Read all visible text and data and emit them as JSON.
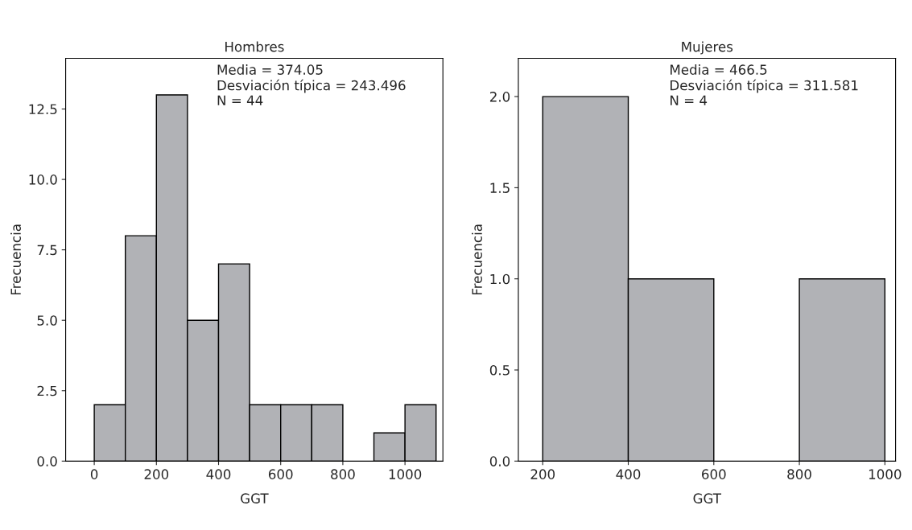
{
  "chart_data": [
    {
      "type": "histogram",
      "title": "Hombres",
      "xlabel": "GGT",
      "ylabel": "Frecuencia",
      "bins": [
        0,
        100,
        200,
        300,
        400,
        500,
        600,
        700,
        800,
        900,
        1000,
        1100
      ],
      "values": [
        2,
        8,
        13,
        5,
        7,
        2,
        2,
        2,
        0,
        1,
        2
      ],
      "color": "#b1b2b6",
      "xlim": [
        -92,
        1122
      ],
      "ylim": [
        0,
        14.3
      ],
      "xticks": [
        0,
        200,
        400,
        600,
        800,
        1000
      ],
      "yticks": [
        {
          "value": 0,
          "label": "0.0"
        },
        2.5,
        {
          "value": 5,
          "label": "5.0"
        },
        7.5,
        {
          "value": 10,
          "label": "10.0"
        },
        12.5
      ],
      "grid": false,
      "annotations": [
        "Media = 374.05\nDesviación típica = 243.496\nN = 44"
      ]
    },
    {
      "type": "histogram",
      "title": "Mujeres",
      "xlabel": "GGT",
      "ylabel": "Frecuencia",
      "bins": [
        200,
        400,
        600,
        800,
        1000
      ],
      "values": [
        2,
        1,
        0,
        1
      ],
      "color": "#b1b2b6",
      "xlim": [
        143,
        1025
      ],
      "ylim": [
        0,
        2.21
      ],
      "xticks": [
        200,
        400,
        600,
        800,
        1000
      ],
      "yticks": [
        {
          "value": 0,
          "label": "0.0"
        },
        0.5,
        {
          "value": 1,
          "label": "1.0"
        },
        1.5,
        {
          "value": 2,
          "label": "2.0"
        }
      ],
      "grid": false,
      "annotations": [
        "Media = 466.5\nDesviación típica = 311.581\nN = 4"
      ]
    }
  ]
}
